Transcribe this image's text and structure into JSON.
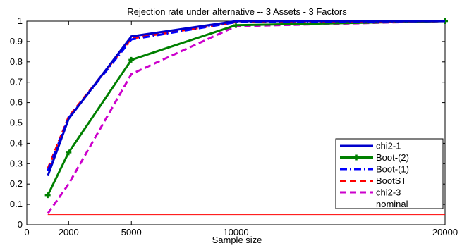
{
  "chart_data": {
    "type": "line",
    "title": "Rejection rate under alternative -- 3 Assets - 3 Factors",
    "xlabel": "Sample size",
    "ylabel": "",
    "xlim": [
      0,
      20000
    ],
    "ylim": [
      0,
      1
    ],
    "xticks": [
      0,
      2000,
      5000,
      10000,
      20000
    ],
    "xtick_labels": [
      "0",
      "2000",
      "5000",
      "10000",
      "20000"
    ],
    "yticks": [
      0,
      0.1,
      0.2,
      0.3,
      0.4,
      0.5,
      0.6,
      0.7,
      0.8,
      0.9,
      1
    ],
    "ytick_labels": [
      "0",
      "0.1",
      "0.2",
      "0.3",
      "0.4",
      "0.5",
      "0.6",
      "0.7",
      "0.8",
      "0.9",
      "1"
    ],
    "grid": false,
    "legend_position": "bottom-right",
    "series": [
      {
        "name": "chi2-1",
        "color": "#0000cc",
        "dash": "solid",
        "marker": "none",
        "x": [
          1000,
          2000,
          5000,
          10000,
          20000
        ],
        "y": [
          0.24,
          0.52,
          0.925,
          1.0,
          1.0
        ]
      },
      {
        "name": "Boot-(2)",
        "color": "#008000",
        "dash": "solid",
        "marker": "plus",
        "x": [
          1000,
          2000,
          5000,
          10000,
          20000
        ],
        "y": [
          0.145,
          0.355,
          0.81,
          0.98,
          1.0
        ]
      },
      {
        "name": "Boot-(1)",
        "color": "#0000ff",
        "dash": "dashdot",
        "marker": "none",
        "x": [
          1000,
          2000,
          5000,
          10000,
          20000
        ],
        "y": [
          0.265,
          0.525,
          0.91,
          0.995,
          1.0
        ]
      },
      {
        "name": "BootST",
        "color": "#ff0000",
        "dash": "dashed",
        "marker": "none",
        "x": [
          1000,
          2000,
          5000,
          10000,
          20000
        ],
        "y": [
          0.275,
          0.53,
          0.915,
          0.995,
          1.0
        ]
      },
      {
        "name": "chi2-3",
        "color": "#cc00cc",
        "dash": "dashed",
        "marker": "none",
        "x": [
          1000,
          2000,
          5000,
          10000,
          20000
        ],
        "y": [
          0.055,
          0.2,
          0.74,
          0.975,
          1.0
        ]
      },
      {
        "name": "nominal",
        "color": "#ff0000",
        "dash": "thin",
        "marker": "none",
        "x": [
          1000,
          20000
        ],
        "y": [
          0.05,
          0.05
        ]
      }
    ]
  }
}
